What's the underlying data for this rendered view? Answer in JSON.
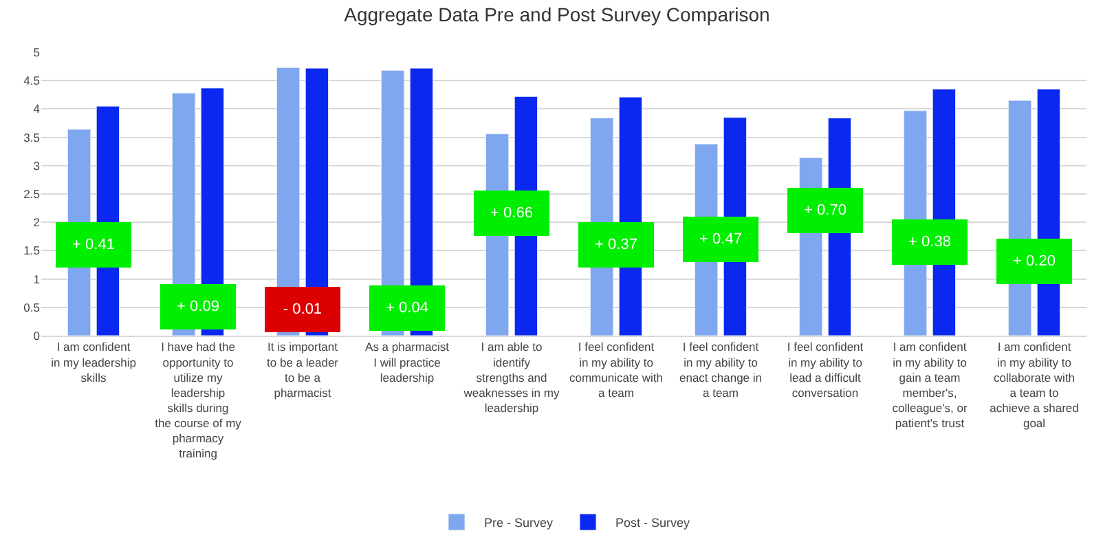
{
  "chart_data": {
    "type": "bar",
    "title": "Aggregate Data Pre and Post Survey Comparison",
    "categories": [
      "I am confident in my leadership skills",
      "I have had the opportunity to utilize my leadership skills during the course of my pharmacy training",
      "It is important to be a leader to be a pharmacist",
      "As a pharmacist I will practice leadership",
      "I am able to identify strengths and weaknesses in my leadership",
      "I feel confident in my ability to communicate with a team",
      "I feel confident in my ability to enact change in a team",
      "I feel confident in my ability to lead a difficult conversation",
      "I am confident in my ability to gain a team member's, colleague's, or patient's trust",
      "I am confident in my ability to collaborate with a team to achieve a shared goal"
    ],
    "series": [
      {
        "name": "Pre - Survey",
        "color": "#7fa7f0",
        "values": [
          3.64,
          4.28,
          4.73,
          4.68,
          3.56,
          3.84,
          3.38,
          3.14,
          3.97,
          4.15
        ]
      },
      {
        "name": "Post - Survey",
        "color": "#0a28f0",
        "values": [
          4.05,
          4.37,
          4.72,
          4.72,
          4.22,
          4.21,
          3.85,
          3.84,
          4.35,
          4.35
        ]
      }
    ],
    "annotations": [
      {
        "text": "+ 0.41",
        "x": "I am confident in my leadership skills",
        "y": 1.6
      },
      {
        "text": "+ 0.09",
        "x": "I have had the opportunity to utilize my leadership skills during the course of my pharmacy training",
        "y": 0.52
      },
      {
        "text": "- 0.01",
        "x": "It is important to be a leader to be a pharmacist",
        "y": 0.45
      },
      {
        "text": "+ 0.04",
        "x": "As a pharmacist I will practice leadership",
        "y": 0.48
      },
      {
        "text": "+ 0.66",
        "x": "I am able to identify strengths and weaknesses in my leadership",
        "y": 2.15
      },
      {
        "text": "+ 0.37",
        "x": "I feel confident in my ability to communicate with a team",
        "y": 1.6
      },
      {
        "text": "+ 0.47",
        "x": "I feel confident in my ability to enact change in a team",
        "y": 1.7
      },
      {
        "text": "+ 0.70",
        "x": "I feel confident in my ability to lead a difficult conversation",
        "y": 2.2
      },
      {
        "text": "+ 0.38",
        "x": "I am confident in my ability to gain a team member's, colleague's, or patient's trust",
        "y": 1.65
      },
      {
        "text": "+ 0.20",
        "x": "I am confident in my ability to collaborate with a team to achieve a shared goal",
        "y": 1.3
      }
    ],
    "ylim": [
      0,
      5
    ],
    "yticks": [
      0,
      0.5,
      1,
      1.5,
      2,
      2.5,
      3,
      3.5,
      4,
      4.5,
      5
    ],
    "grid": "y",
    "legend": "bottom"
  }
}
